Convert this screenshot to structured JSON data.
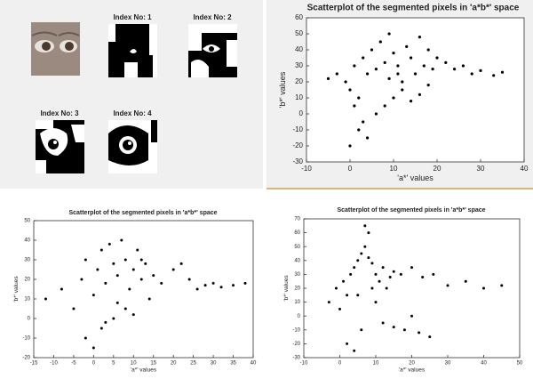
{
  "panel": {
    "thumbnails": [
      {
        "title": "Index No: 1"
      },
      {
        "title": "Index No: 2"
      },
      {
        "title": "Index No: 3"
      },
      {
        "title": "Index No: 4"
      }
    ]
  },
  "chart_data": [
    {
      "type": "scatter",
      "title": "Scatterplot of the segmented pixels in 'a*b*' space",
      "x_label": "'a*' values",
      "y_label": "'b*' values",
      "color": "#000000",
      "xlim": [
        -10,
        40
      ],
      "xticks": [
        -10,
        0,
        10,
        20,
        30,
        40
      ],
      "ylim": [
        -30,
        60
      ],
      "yticks": [
        -30,
        -20,
        -10,
        0,
        10,
        20,
        30,
        40,
        50,
        60
      ],
      "x": [
        -5,
        -3,
        -1,
        0,
        1,
        2,
        3,
        4,
        5,
        6,
        7,
        8,
        9,
        10,
        11,
        12,
        13,
        14,
        15,
        16,
        17,
        18,
        19,
        20,
        22,
        24,
        26,
        28,
        30,
        33,
        35,
        2,
        4,
        0,
        8,
        10,
        12,
        14,
        6,
        16,
        3,
        1,
        18,
        11,
        9
      ],
      "values": [
        22,
        25,
        20,
        15,
        30,
        10,
        35,
        25,
        40,
        28,
        45,
        32,
        50,
        38,
        30,
        20,
        42,
        35,
        25,
        48,
        30,
        40,
        28,
        35,
        32,
        28,
        30,
        25,
        27,
        24,
        26,
        -10,
        -15,
        -20,
        5,
        10,
        15,
        8,
        0,
        12,
        -5,
        5,
        18,
        25,
        22
      ]
    },
    {
      "type": "scatter",
      "title": "Scatterplot of the segmented pixels in 'a*b*' space",
      "x_label": "'a*' values",
      "y_label": "'b*' values",
      "color": "#000000",
      "xlim": [
        -15,
        40
      ],
      "xticks": [
        -15,
        -10,
        -5,
        0,
        5,
        10,
        15,
        20,
        25,
        30,
        35,
        40
      ],
      "ylim": [
        -20,
        50
      ],
      "yticks": [
        -20,
        -10,
        0,
        10,
        20,
        30,
        40,
        50
      ],
      "x": [
        -12,
        -8,
        -5,
        -3,
        -2,
        0,
        1,
        2,
        3,
        4,
        5,
        6,
        7,
        8,
        9,
        10,
        11,
        12,
        13,
        14,
        15,
        17,
        20,
        22,
        24,
        26,
        28,
        30,
        32,
        35,
        38,
        0,
        2,
        -2,
        5,
        8,
        10,
        3,
        6,
        12
      ],
      "values": [
        10,
        15,
        5,
        20,
        30,
        12,
        25,
        35,
        18,
        38,
        28,
        22,
        40,
        30,
        15,
        25,
        35,
        20,
        28,
        10,
        22,
        18,
        25,
        28,
        20,
        15,
        17,
        18,
        16,
        17,
        18,
        -15,
        -5,
        -10,
        0,
        5,
        2,
        -2,
        8,
        30
      ]
    },
    {
      "type": "scatter",
      "title": "Scatterplot of the segmented pixels in 'a*b*' space",
      "x_label": "'a*' values",
      "y_label": "'b*' values",
      "color": "#000000",
      "xlim": [
        -10,
        50
      ],
      "xticks": [
        -10,
        0,
        10,
        20,
        30,
        40,
        50
      ],
      "ylim": [
        -30,
        70
      ],
      "yticks": [
        -30,
        -20,
        -10,
        0,
        10,
        20,
        30,
        40,
        50,
        60,
        70
      ],
      "x": [
        -3,
        -1,
        0,
        1,
        2,
        3,
        4,
        5,
        6,
        7,
        8,
        9,
        10,
        11,
        12,
        13,
        14,
        15,
        17,
        20,
        23,
        26,
        30,
        35,
        40,
        45,
        7,
        8,
        12,
        15,
        18,
        20,
        22,
        25,
        2,
        4,
        6,
        10,
        5,
        9
      ],
      "values": [
        10,
        20,
        5,
        25,
        15,
        30,
        35,
        40,
        45,
        50,
        42,
        38,
        30,
        25,
        35,
        20,
        28,
        32,
        30,
        35,
        28,
        30,
        22,
        25,
        20,
        22,
        65,
        60,
        -5,
        -8,
        -10,
        0,
        -12,
        -15,
        -20,
        -25,
        -10,
        10,
        15,
        20
      ]
    }
  ]
}
